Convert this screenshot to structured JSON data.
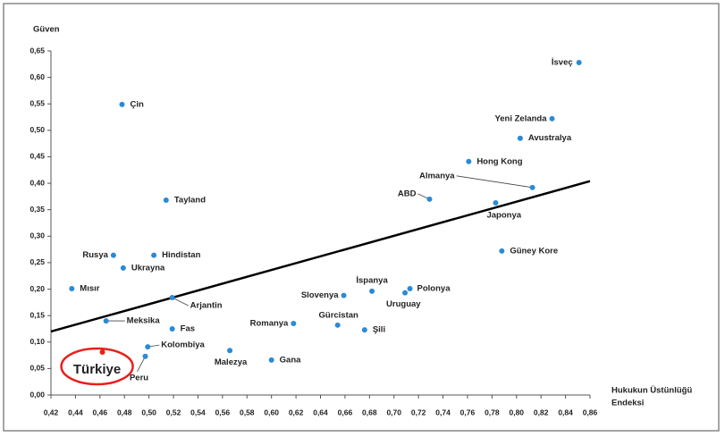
{
  "chart_data": {
    "type": "scatter",
    "y_label": "Güven",
    "x_label": [
      "Hukukun Üstünlüğü",
      "Endeksi"
    ],
    "color": "#2a8ad6",
    "highlight_color": "#e8201c",
    "points": [
      {
        "label": "İsveç",
        "x": 0.851,
        "y": 0.628
      },
      {
        "label": "Çin",
        "x": 0.478,
        "y": 0.549
      },
      {
        "label": "Yeni Zelanda",
        "x": 0.829,
        "y": 0.522
      },
      {
        "label": "Avustralya",
        "x": 0.803,
        "y": 0.485
      },
      {
        "label": "Hong Kong",
        "x": 0.761,
        "y": 0.441
      },
      {
        "label": "Almanya",
        "x": 0.813,
        "y": 0.392
      },
      {
        "label": "ABD",
        "x": 0.729,
        "y": 0.37
      },
      {
        "label": "Japonya",
        "x": 0.783,
        "y": 0.363
      },
      {
        "label": "Tayland",
        "x": 0.514,
        "y": 0.368
      },
      {
        "label": "Güney Kore",
        "x": 0.788,
        "y": 0.272
      },
      {
        "label": "Rusya",
        "x": 0.471,
        "y": 0.264
      },
      {
        "label": "Hindistan",
        "x": 0.504,
        "y": 0.264
      },
      {
        "label": "Ukrayna",
        "x": 0.479,
        "y": 0.24
      },
      {
        "label": "Mısır",
        "x": 0.437,
        "y": 0.201
      },
      {
        "label": "Arjantin",
        "x": 0.519,
        "y": 0.184
      },
      {
        "label": "Slovenya",
        "x": 0.659,
        "y": 0.188
      },
      {
        "label": "İspanya",
        "x": 0.682,
        "y": 0.196
      },
      {
        "label": "Polonya",
        "x": 0.713,
        "y": 0.201
      },
      {
        "label": "Uruguay",
        "x": 0.709,
        "y": 0.193
      },
      {
        "label": "Meksika",
        "x": 0.465,
        "y": 0.14
      },
      {
        "label": "Fas",
        "x": 0.519,
        "y": 0.125
      },
      {
        "label": "Romanya",
        "x": 0.618,
        "y": 0.135
      },
      {
        "label": "Gürcistan",
        "x": 0.654,
        "y": 0.132
      },
      {
        "label": "Şili",
        "x": 0.676,
        "y": 0.123
      },
      {
        "label": "Kolombiya",
        "x": 0.499,
        "y": 0.091
      },
      {
        "label": "Malezya",
        "x": 0.566,
        "y": 0.084
      },
      {
        "label": "Peru",
        "x": 0.497,
        "y": 0.073
      },
      {
        "label": "Gana",
        "x": 0.6,
        "y": 0.066
      },
      {
        "label": "Türkiye",
        "x": 0.462,
        "y": 0.081,
        "highlight": true
      }
    ],
    "trendline": {
      "x": [
        0.42,
        0.86
      ],
      "y": [
        0.12,
        0.404
      ],
      "color": "#000000"
    },
    "xlim": [
      0.42,
      0.86
    ],
    "ylim": [
      0,
      0.65
    ],
    "xticks": [
      {
        "value": 0.42,
        "label": "0,42"
      },
      {
        "value": 0.44,
        "label": "0,44"
      },
      {
        "value": 0.46,
        "label": "0,46"
      },
      {
        "value": 0.48,
        "label": "0,48"
      },
      {
        "value": 0.5,
        "label": "0,50"
      },
      {
        "value": 0.52,
        "label": "0,52"
      },
      {
        "value": 0.54,
        "label": "0,54"
      },
      {
        "value": 0.56,
        "label": "0,56"
      },
      {
        "value": 0.58,
        "label": "0,58"
      },
      {
        "value": 0.6,
        "label": "0,60"
      },
      {
        "value": 0.62,
        "label": "0,62"
      },
      {
        "value": 0.64,
        "label": "0,64"
      },
      {
        "value": 0.66,
        "label": "0,66"
      },
      {
        "value": 0.68,
        "label": "0,68"
      },
      {
        "value": 0.7,
        "label": "0,70"
      },
      {
        "value": 0.72,
        "label": "0,72"
      },
      {
        "value": 0.74,
        "label": "0,74"
      },
      {
        "value": 0.76,
        "label": "0,76"
      },
      {
        "value": 0.78,
        "label": "0,78"
      },
      {
        "value": 0.8,
        "label": "0,80"
      },
      {
        "value": 0.82,
        "label": "0,82"
      },
      {
        "value": 0.84,
        "label": "0,84"
      },
      {
        "value": 0.86,
        "label": "0,86"
      }
    ],
    "yticks": [
      {
        "value": 0,
        "label": "0,00"
      },
      {
        "value": 0.05,
        "label": "0,05"
      },
      {
        "value": 0.1,
        "label": "0,10"
      },
      {
        "value": 0.15,
        "label": "0,15"
      },
      {
        "value": 0.2,
        "label": "0,20"
      },
      {
        "value": 0.25,
        "label": "0,25"
      },
      {
        "value": 0.3,
        "label": "0,30"
      },
      {
        "value": 0.35,
        "label": "0,35"
      },
      {
        "value": 0.4,
        "label": "0,40"
      },
      {
        "value": 0.45,
        "label": "0,45"
      },
      {
        "value": 0.5,
        "label": "0,50"
      },
      {
        "value": 0.55,
        "label": "0,55"
      },
      {
        "value": 0.6,
        "label": "0,60"
      },
      {
        "value": 0.65,
        "label": "0,65"
      }
    ],
    "grid": false
  }
}
